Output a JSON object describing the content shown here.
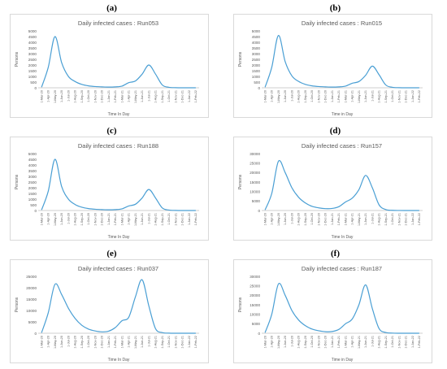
{
  "chart_data": [
    {
      "type": "line",
      "panel_label": "(a)",
      "title": "Daily infected cases : Run053",
      "xlabel": "Time In Day",
      "ylabel": "Persons",
      "ylim": [
        0,
        5000
      ],
      "yticks": [
        "0",
        "500",
        "1000",
        "1500",
        "2000",
        "2500",
        "3000",
        "3500",
        "4000",
        "4500",
        "5000"
      ],
      "categories": [
        "1-Mar-20",
        "1-Apr-20",
        "1-May-20",
        "1-Jun-20",
        "1-Jul-20",
        "1-Aug-20",
        "1-Sep-20",
        "1-Oct-20",
        "1-Nov-20",
        "1-Dec-20",
        "1-Jan-21",
        "1-Feb-21",
        "1-Mar-21",
        "1-Apr-21",
        "1-May-21",
        "1-Jun-21",
        "1-Jul-21",
        "1-Aug-21",
        "1-Sep-21",
        "1-Oct-21",
        "1-Nov-21",
        "1-Dec-21",
        "1-Jan-22",
        "1-Feb-22"
      ],
      "series": [
        {
          "values": [
            50,
            1800,
            4500,
            2200,
            1000,
            550,
            300,
            170,
            110,
            80,
            60,
            80,
            150,
            450,
            600,
            1200,
            2000,
            1200,
            250,
            40,
            10,
            0,
            0,
            0
          ]
        }
      ],
      "color": "#4a9fd4",
      "grid": false
    },
    {
      "type": "line",
      "panel_label": "(b)",
      "title": "Daily infected cases : Run015",
      "xlabel": "Time in Day",
      "ylabel": "Persons",
      "ylim": [
        0,
        5000
      ],
      "yticks": [
        "0",
        "500",
        "1000",
        "1500",
        "2000",
        "2500",
        "3000",
        "3500",
        "4000",
        "4500",
        "5000"
      ],
      "categories": [
        "1-Mar-20",
        "1-Apr-20",
        "1-May-20",
        "1-Jun-20",
        "1-Jul-20",
        "1-Aug-20",
        "1-Sep-20",
        "1-Oct-20",
        "1-Nov-20",
        "1-Dec-20",
        "1-Jan-21",
        "1-Feb-21",
        "1-Mar-21",
        "1-Apr-21",
        "1-May-21",
        "1-Jun-21",
        "1-Jul-21",
        "1-Aug-21",
        "1-Sep-21",
        "1-Oct-21",
        "1-Nov-21",
        "1-Dec-21",
        "1-Jan-22",
        "1-Feb-22"
      ],
      "series": [
        {
          "values": [
            50,
            1800,
            4600,
            2300,
            1050,
            560,
            300,
            170,
            110,
            80,
            60,
            80,
            150,
            400,
            550,
            1100,
            1900,
            1150,
            250,
            40,
            10,
            0,
            0,
            0
          ]
        }
      ],
      "color": "#4a9fd4",
      "grid": false
    },
    {
      "type": "line",
      "panel_label": "(c)",
      "title": "Daily infected cases : Run188",
      "xlabel": "Time In Day",
      "ylabel": "Persons",
      "ylim": [
        0,
        5000
      ],
      "yticks": [
        "0",
        "500",
        "1000",
        "1500",
        "2000",
        "2500",
        "3000",
        "3500",
        "4000",
        "4500",
        "5000"
      ],
      "categories": [
        "1-Mar-20",
        "1-Apr-20",
        "1-May-20",
        "1-Jun-20",
        "1-Jul-20",
        "1-Aug-20",
        "1-Sep-20",
        "1-Oct-20",
        "1-Nov-20",
        "1-Dec-20",
        "1-Jan-21",
        "1-Feb-21",
        "1-Mar-21",
        "1-Apr-21",
        "1-May-21",
        "1-Jun-21",
        "1-Jul-21",
        "1-Aug-21",
        "1-Sep-21",
        "1-Oct-21",
        "1-Nov-21",
        "1-Dec-21",
        "1-Jan-22",
        "1-Feb-22"
      ],
      "series": [
        {
          "values": [
            50,
            1700,
            4500,
            2100,
            1000,
            530,
            290,
            170,
            110,
            80,
            60,
            80,
            150,
            400,
            550,
            1100,
            1850,
            1100,
            230,
            40,
            10,
            0,
            0,
            0
          ]
        }
      ],
      "color": "#4a9fd4",
      "grid": false
    },
    {
      "type": "line",
      "panel_label": "(d)",
      "title": "Daily infected cases : Run157",
      "xlabel": "Time In Day",
      "ylabel": "Persons",
      "ylim": [
        0,
        30000
      ],
      "yticks": [
        "0",
        "5000",
        "10000",
        "15000",
        "20000",
        "25000",
        "30000"
      ],
      "categories": [
        "1-Mar-20",
        "1-Apr-20",
        "1-May-20",
        "1-Jun-20",
        "1-Jul-20",
        "1-Aug-20",
        "1-Sep-20",
        "1-Oct-20",
        "1-Nov-20",
        "1-Dec-20",
        "1-Jan-21",
        "1-Feb-21",
        "1-Mar-21",
        "1-Apr-21",
        "1-May-21",
        "1-Jun-21",
        "1-Jul-21",
        "1-Aug-21",
        "1-Sep-21",
        "1-Oct-21",
        "1-Nov-21",
        "1-Dec-21",
        "1-Jan-22",
        "1-Feb-22"
      ],
      "series": [
        {
          "values": [
            300,
            9000,
            26000,
            20000,
            12000,
            7000,
            4000,
            2200,
            1400,
            1000,
            1100,
            2000,
            4500,
            6500,
            11000,
            18500,
            12000,
            3000,
            500,
            100,
            20,
            0,
            0,
            0
          ]
        }
      ],
      "color": "#4a9fd4",
      "grid": false
    },
    {
      "type": "line",
      "panel_label": "(e)",
      "title": "Daily infected cases : Run037",
      "xlabel": "Time In Day",
      "ylabel": "Persons",
      "ylim": [
        0,
        25000
      ],
      "yticks": [
        "0",
        "5000",
        "10000",
        "15000",
        "20000",
        "25000"
      ],
      "categories": [
        "1-Mar-20",
        "1-Apr-20",
        "1-May-20",
        "1-Jun-20",
        "1-Jul-20",
        "1-Aug-20",
        "1-Sep-20",
        "1-Oct-20",
        "1-Nov-20",
        "1-Dec-20",
        "1-Jan-21",
        "1-Feb-21",
        "1-Mar-21",
        "1-Apr-21",
        "1-May-21",
        "1-Jun-21",
        "1-Jul-21",
        "1-Aug-21",
        "1-Sep-21",
        "1-Oct-21",
        "1-Nov-21",
        "1-Dec-21",
        "1-Jan-22",
        "1-Feb-22"
      ],
      "series": [
        {
          "values": [
            200,
            9000,
            21500,
            17000,
            11000,
            6500,
            3500,
            1800,
            1000,
            600,
            900,
            2500,
            5500,
            7000,
            16000,
            23500,
            12000,
            2000,
            300,
            50,
            10,
            0,
            0,
            0
          ]
        }
      ],
      "color": "#4a9fd4",
      "grid": false
    },
    {
      "type": "line",
      "panel_label": "(f)",
      "title": "Daily infected cases : Run187",
      "xlabel": "Time in Day",
      "ylabel": "Persons",
      "ylim": [
        0,
        30000
      ],
      "yticks": [
        "0",
        "5000",
        "10000",
        "15000",
        "20000",
        "25000",
        "30000"
      ],
      "categories": [
        "1-Mar-20",
        "1-Apr-20",
        "1-May-20",
        "1-Jun-20",
        "1-Jul-20",
        "1-Aug-20",
        "1-Sep-20",
        "1-Oct-20",
        "1-Nov-20",
        "1-Dec-20",
        "1-Jan-21",
        "1-Feb-21",
        "1-Mar-21",
        "1-Apr-21",
        "1-May-21",
        "1-Jun-21",
        "1-Jul-21",
        "1-Aug-21",
        "1-Sep-21",
        "1-Oct-21",
        "1-Nov-21",
        "1-Dec-21",
        "1-Jan-22",
        "1-Feb-22"
      ],
      "series": [
        {
          "values": [
            300,
            10000,
            26000,
            20000,
            12000,
            7000,
            4000,
            2200,
            1300,
            800,
            900,
            2000,
            5000,
            7500,
            15000,
            25500,
            13000,
            2500,
            400,
            80,
            10,
            0,
            0,
            0
          ]
        }
      ],
      "color": "#4a9fd4",
      "grid": false
    }
  ]
}
